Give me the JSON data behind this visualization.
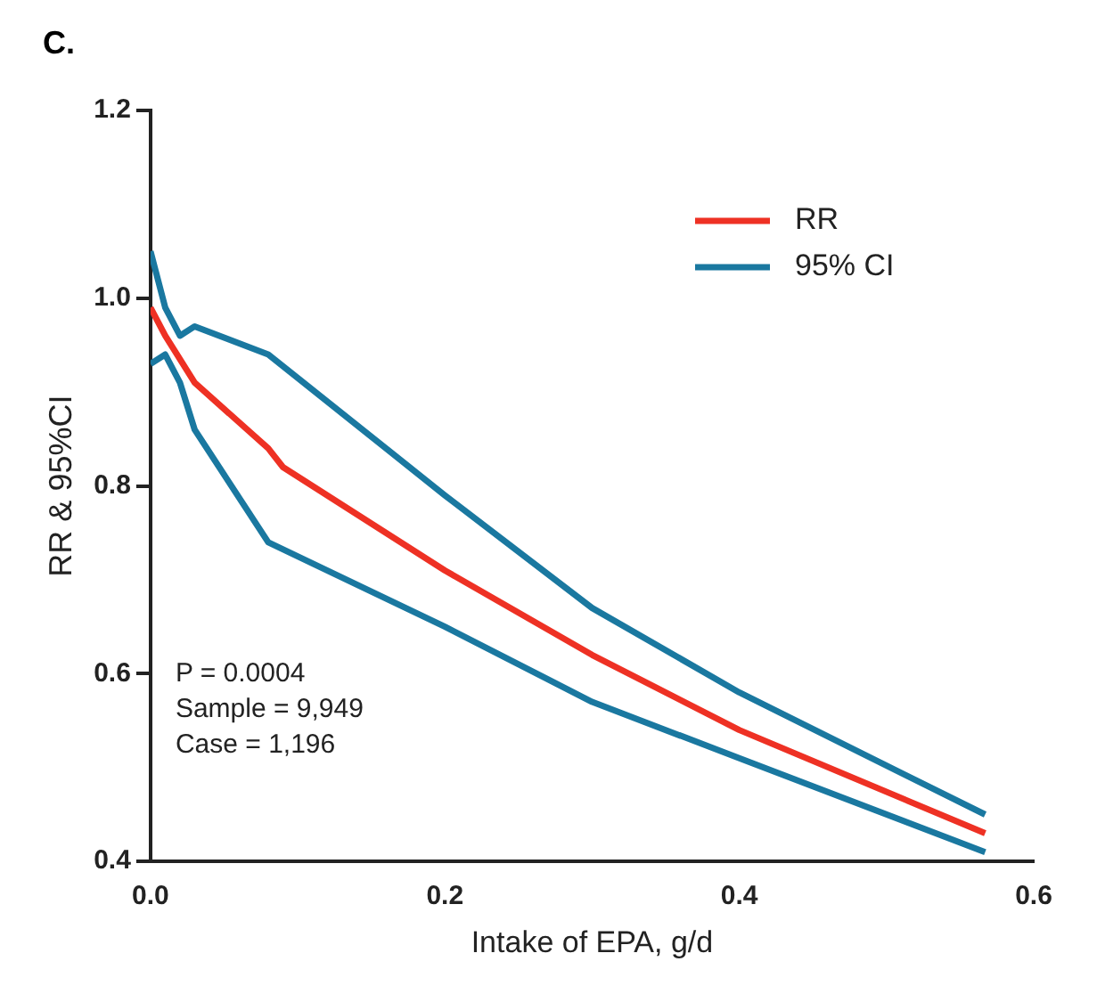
{
  "chart_data": {
    "type": "line",
    "title": "C.",
    "xlabel": "Intake of EPA, g/d",
    "ylabel": "RR & 95%CI",
    "series": [
      {
        "name": "RR",
        "color": "#ee3124",
        "x": [
          0,
          0.01,
          0.03,
          0.08,
          0.09,
          0.2,
          0.3,
          0.4,
          0.567
        ],
        "values": [
          0.99,
          0.96,
          0.91,
          0.84,
          0.82,
          0.71,
          0.62,
          0.54,
          0.43
        ]
      },
      {
        "name": "95% CI",
        "color": "#1a78a0",
        "x": [
          0,
          0.01,
          0.02,
          0.03,
          0.08,
          0.2,
          0.3,
          0.4,
          0.567
        ],
        "values": [
          1.05,
          0.99,
          0.96,
          0.97,
          0.94,
          0.79,
          0.67,
          0.58,
          0.45
        ]
      },
      {
        "color": "#1a78a0",
        "x": [
          0,
          0.01,
          0.02,
          0.03,
          0.08,
          0.2,
          0.3,
          0.4,
          0.567
        ],
        "values": [
          0.93,
          0.94,
          0.91,
          0.86,
          0.74,
          0.65,
          0.57,
          0.51,
          0.41
        ]
      }
    ],
    "xlim": [
      0,
      0.6
    ],
    "xticks": [
      {
        "value": 0,
        "label": "0.0"
      },
      {
        "value": 0.2,
        "label": "0.2"
      },
      {
        "value": 0.4,
        "label": "0.4"
      },
      {
        "value": 0.6,
        "label": "0.6"
      }
    ],
    "ylim": [
      0.4,
      1.2
    ],
    "yticks": [
      {
        "value": 0.4,
        "label": "0.4"
      },
      {
        "value": 0.6,
        "label": "0.6"
      },
      {
        "value": 0.8,
        "label": "0.8"
      },
      {
        "value": 1,
        "label": "1.0"
      },
      {
        "value": 1.2,
        "label": "1.2"
      }
    ],
    "annotations": [
      "P = 0.0004",
      "Sample = 9,949",
      "Case = 1,196"
    ],
    "legend": "top right",
    "grid": false,
    "marker": "none",
    "line_style": "solid"
  }
}
